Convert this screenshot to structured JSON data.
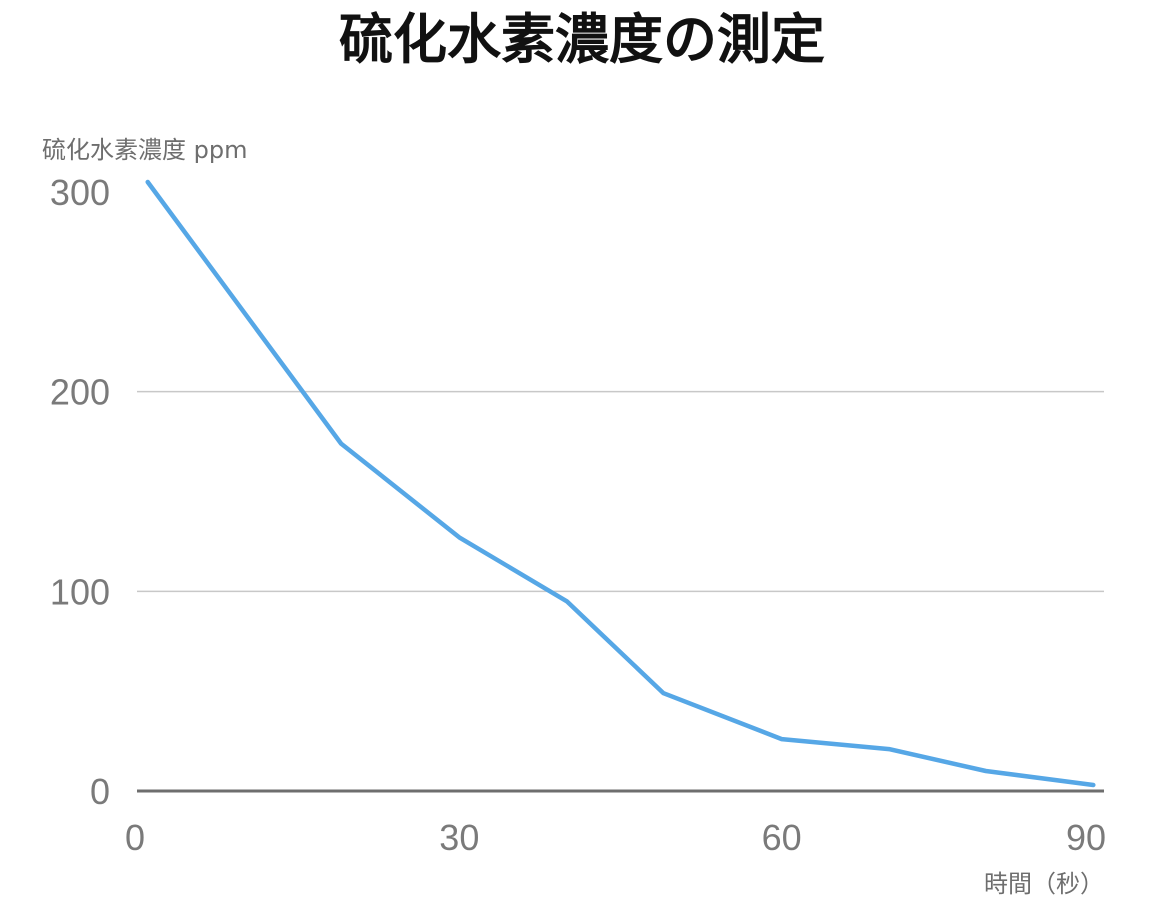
{
  "chart_data": {
    "type": "line",
    "title": "硫化水素濃度の測定",
    "ylabel": "硫化水素濃度 ppm",
    "xlabel": "時間（秒）",
    "xlim": [
      0,
      90
    ],
    "ylim": [
      0,
      300
    ],
    "xticks": [
      0,
      30,
      60,
      90
    ],
    "yticks": [
      0,
      100,
      200,
      300
    ],
    "grid": true,
    "series": [
      {
        "color": "#56a7e6",
        "x": [
          1,
          19,
          30,
          40,
          49,
          60,
          70,
          79,
          89
        ],
        "y": [
          305,
          174,
          127,
          95,
          49,
          26,
          21,
          10,
          3
        ]
      }
    ]
  }
}
